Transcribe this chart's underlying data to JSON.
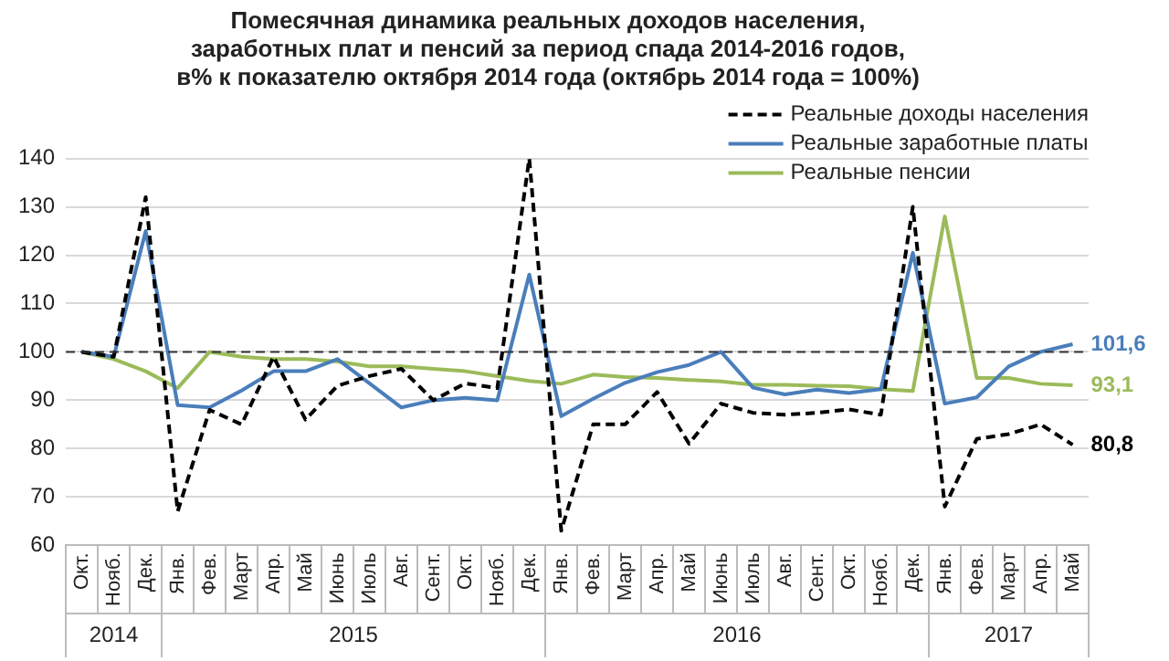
{
  "chart_data": {
    "type": "line",
    "title": "Помесячная динамика реальных доходов населения,\nзаработных плат и пенсий за период спада 2014-2016 годов,\nв% к показателю октября 2014 года (октябрь 2014 года = 100%)",
    "categories": [
      "Окт.",
      "Нояб.",
      "Дек.",
      "Янв.",
      "Фев.",
      "Март",
      "Апр.",
      "Май",
      "Июнь",
      "Июль",
      "Авг.",
      "Сент.",
      "Окт.",
      "Нояб.",
      "Дек.",
      "Янв.",
      "Фев.",
      "Март",
      "Апр.",
      "Май",
      "Июнь",
      "Июль",
      "Авг.",
      "Сент.",
      "Окт.",
      "Нояб.",
      "Дек.",
      "Янв.",
      "Фев.",
      "Март",
      "Апр.",
      "Май"
    ],
    "series": [
      {
        "name": "Реальные доходы населения",
        "color": "#000000",
        "line_style": "dashed",
        "values": [
          100,
          99,
          132,
          67,
          88,
          85,
          99,
          86,
          93,
          95,
          96.5,
          90,
          93.5,
          92.5,
          140,
          63,
          85,
          85,
          91.7,
          81,
          89.3,
          87.4,
          87,
          87.4,
          88.1,
          87,
          130,
          68,
          82,
          83,
          85,
          80.8
        ],
        "value_labels": [
          null,
          null,
          null,
          null,
          null,
          null,
          null,
          null,
          null,
          null,
          null,
          null,
          null,
          null,
          null,
          null,
          null,
          null,
          null,
          null,
          null,
          null,
          null,
          null,
          null,
          null,
          null,
          null,
          null,
          null,
          null,
          "80,8"
        ]
      },
      {
        "name": "Реальные заработные платы",
        "color": "#4a7ebb",
        "line_style": "solid",
        "values": [
          100,
          99,
          125,
          89,
          88.5,
          92,
          96,
          96,
          98.5,
          93.5,
          88.5,
          90,
          90.5,
          90,
          116,
          86.7,
          90.3,
          93.6,
          95.8,
          97.3,
          100,
          92.6,
          91.2,
          92.2,
          91.5,
          92.3,
          120.5,
          89.3,
          90.6,
          97,
          100,
          101.6
        ],
        "value_labels": [
          null,
          null,
          null,
          null,
          null,
          null,
          null,
          null,
          null,
          null,
          null,
          null,
          null,
          null,
          null,
          null,
          null,
          null,
          null,
          null,
          null,
          null,
          null,
          null,
          null,
          null,
          null,
          null,
          null,
          null,
          null,
          "101,6"
        ]
      },
      {
        "name": "Реальные пенсии",
        "color": "#9bbb59",
        "line_style": "solid",
        "values": [
          100,
          98.5,
          96,
          92.5,
          100,
          99,
          98.5,
          98.5,
          98,
          97,
          97,
          96.5,
          96,
          95,
          94,
          93.4,
          95.3,
          94.8,
          94.6,
          94.2,
          93.9,
          93.2,
          93.2,
          93,
          92.9,
          92.3,
          91.9,
          128,
          94.6,
          94.6,
          93.4,
          93.1
        ],
        "value_labels": [
          null,
          null,
          null,
          null,
          null,
          null,
          null,
          null,
          null,
          null,
          null,
          null,
          null,
          null,
          null,
          null,
          null,
          null,
          null,
          null,
          null,
          null,
          null,
          null,
          null,
          null,
          null,
          null,
          null,
          null,
          null,
          "93,1"
        ]
      }
    ],
    "ylim": [
      60,
      140
    ],
    "yticks": [
      60,
      70,
      80,
      90,
      100,
      110,
      120,
      130,
      140
    ],
    "grid": "y",
    "legend": "top right",
    "marker": "none",
    "ref_lines": [
      {
        "axis": "y",
        "value": 100,
        "color": "#333333",
        "line_style": "dashed"
      }
    ],
    "annotations": [
      "2014",
      "2015",
      "2016",
      "2017"
    ]
  }
}
